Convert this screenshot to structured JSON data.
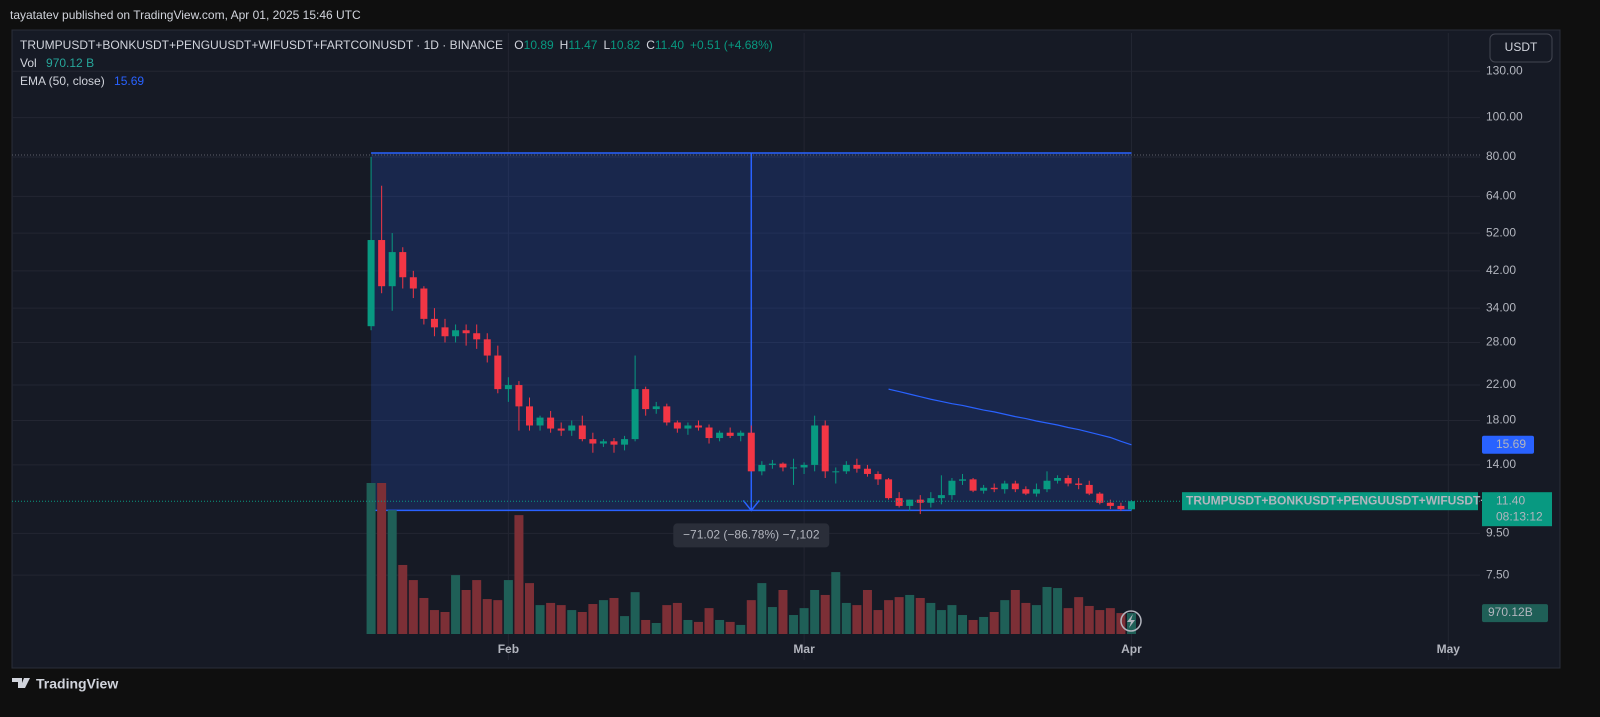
{
  "published": "tayatatev published on TradingView.com, Apr 01, 2025 15:46 UTC",
  "brand": "TradingView",
  "chart_data": {
    "type": "candlestick",
    "title": "TRUMPUSDT+BONKUSDT+PENGUUSDT+WIFUSDT+FARTCOINUSDT · 1D · BINANCE",
    "ohlc_legend": [
      {
        "key": "O",
        "value": "10.89"
      },
      {
        "key": "H",
        "value": "11.47"
      },
      {
        "key": "L",
        "value": "10.82"
      },
      {
        "key": "C",
        "value": "11.40"
      }
    ],
    "change": "+0.51 (+4.68%)",
    "currency": "USDT",
    "up_color": "#089981",
    "down_color": "#f23645",
    "open": [
      30.7,
      50,
      38.5,
      46.7,
      40.5,
      38,
      32,
      30.5,
      29,
      30,
      29.5,
      28.5,
      26,
      21.5,
      22,
      19.5,
      17.5,
      18.3,
      17.2,
      17,
      17.5,
      16.2,
      15.8,
      16,
      15.7,
      16.2,
      21.5,
      19.2,
      19.5,
      17.8,
      17.2,
      17.5,
      17.3,
      16.3,
      16.8,
      16.5,
      16.8,
      13.5,
      14,
      14.1,
      13.8,
      13.8,
      14,
      17.5,
      13.5,
      13.5,
      14,
      13.7,
      13.3,
      12.9,
      11.6,
      11.1,
      11.5,
      11.3,
      11.6,
      11.8,
      12.8,
      12.9,
      12.1,
      12.3,
      12.2,
      12.6,
      12.2,
      11.9,
      12.2,
      12.8,
      13,
      12.6,
      12.5,
      11.9,
      11.3,
      11.1,
      10.89
    ],
    "high": [
      80,
      68,
      52,
      48,
      42,
      38.5,
      34,
      32,
      31,
      31,
      31,
      29.5,
      27.5,
      23,
      22.5,
      20.5,
      18.5,
      19,
      17.8,
      18,
      18.5,
      16.8,
      16.2,
      16.3,
      16.5,
      26,
      21.8,
      20,
      19.8,
      18,
      17.8,
      18,
      17.6,
      17,
      17.3,
      17,
      17.5,
      14.3,
      14.4,
      14.2,
      14.5,
      14.2,
      18.5,
      18,
      13.8,
      14.3,
      14.5,
      14,
      13.5,
      13,
      12,
      11.5,
      11.8,
      12,
      13.2,
      13,
      13.3,
      13,
      12.5,
      12.6,
      12.8,
      12.8,
      12.4,
      12.6,
      13.5,
      13.2,
      13.2,
      13,
      12.8,
      12,
      11.5,
      11.3,
      11.47
    ],
    "low": [
      30,
      37,
      33.5,
      38,
      36,
      31,
      29,
      28,
      28,
      27.5,
      27,
      25,
      21,
      20,
      17,
      17,
      17,
      16.8,
      16.5,
      16.5,
      16,
      15,
      15.5,
      15,
      15.2,
      16,
      18.5,
      18.7,
      17.5,
      16.8,
      16.6,
      17,
      15.8,
      16,
      16.3,
      16,
      13.5,
      13.2,
      13.7,
      13.5,
      12.5,
      13.3,
      13.5,
      13,
      12.6,
      13.3,
      13.4,
      13.1,
      12.5,
      11.5,
      11,
      10.8,
      10.6,
      11,
      11.2,
      11.5,
      12.5,
      12,
      11.9,
      12,
      11.9,
      12,
      11.8,
      11.7,
      12,
      12.6,
      12.4,
      12.2,
      11.8,
      11.2,
      10.9,
      10.8,
      10.82
    ],
    "close": [
      50,
      38.5,
      46.7,
      40.5,
      38,
      32,
      30.5,
      29,
      30,
      29.5,
      28.5,
      26,
      21.5,
      22,
      19.5,
      17.5,
      18.3,
      17.2,
      17,
      17.5,
      16.2,
      15.8,
      16,
      15.7,
      16.2,
      21.5,
      19.2,
      19.5,
      17.8,
      17.2,
      17.5,
      17.3,
      16.3,
      16.8,
      16.5,
      16.8,
      13.5,
      14,
      14.1,
      13.8,
      13.8,
      14,
      17.5,
      13.5,
      13.5,
      14,
      13.7,
      13.3,
      12.9,
      11.6,
      11.1,
      11.5,
      11.3,
      11.6,
      11.8,
      12.8,
      12.9,
      12.1,
      12.3,
      12.2,
      12.6,
      12.2,
      11.9,
      12.2,
      12.8,
      13,
      12.6,
      12.5,
      11.9,
      11.3,
      11.1,
      10.9,
      11.4
    ],
    "volume": {
      "name": "Vol",
      "axis": "y2",
      "up_color": "#1f5f57",
      "down_color": "#7c2f36",
      "values": [
        7000,
        7000,
        5740,
        3200,
        2500,
        1670,
        1110,
        1020,
        2730,
        2040,
        2500,
        1620,
        1570,
        2500,
        5510,
        2360,
        1340,
        1440,
        1340,
        1110,
        1020,
        1390,
        1570,
        1670,
        830,
        1940,
        650,
        510,
        1340,
        1440,
        650,
        560,
        1200,
        650,
        560,
        420,
        1570,
        2360,
        1250,
        2040,
        880,
        1200,
        2040,
        1810,
        2870,
        1440,
        1340,
        2040,
        1110,
        1570,
        1710,
        1810,
        1670,
        1440,
        1110,
        1340,
        880,
        650,
        790,
        1020,
        1570,
        2040,
        1440,
        1340,
        2180,
        2130,
        1200,
        1710,
        1300,
        1110,
        1200,
        970,
        970.12
      ],
      "value_label": "970.12 B",
      "axis_label": "970.12B"
    },
    "ema": {
      "name": "EMA (50, close)",
      "color": "#2962ff",
      "values": [
        null,
        null,
        null,
        null,
        null,
        null,
        null,
        null,
        null,
        null,
        null,
        null,
        null,
        null,
        null,
        null,
        null,
        null,
        null,
        null,
        null,
        null,
        null,
        null,
        null,
        null,
        null,
        null,
        null,
        null,
        null,
        null,
        null,
        null,
        null,
        null,
        null,
        null,
        null,
        null,
        null,
        null,
        null,
        null,
        null,
        null,
        null,
        null,
        null,
        21.5,
        21.2,
        20.9,
        20.6,
        20.3,
        20.05,
        19.8,
        19.6,
        19.35,
        19.1,
        18.9,
        18.65,
        18.4,
        18.2,
        17.95,
        17.75,
        17.55,
        17.3,
        17.1,
        16.85,
        16.6,
        16.35,
        16.0,
        15.69
      ]
    },
    "symbol_label": "TRUMPUSDT+BONKUSDT+PENGUUSDT+WIFUSDT+...",
    "price_label": "11.40",
    "countdown": "08:13:12",
    "measure": {
      "from": 81.84,
      "to": 10.82,
      "label": "−71.02 (−86.78%) −7,102",
      "color": "#2962ff"
    },
    "xlim": [
      -34,
      105
    ],
    "xticks": [
      {
        "value": 13,
        "label": "Feb"
      },
      {
        "value": 41,
        "label": "Mar"
      },
      {
        "value": 72,
        "label": "Apr"
      },
      {
        "value": 102,
        "label": "May"
      }
    ],
    "ylim": [
      4.64,
      161.4
    ],
    "log_y": true,
    "yticks": [
      {
        "value": 130,
        "label": "130.00"
      },
      {
        "value": 100,
        "label": "100.00"
      },
      {
        "value": 80,
        "label": "80.00"
      },
      {
        "value": 64,
        "label": "64.00"
      },
      {
        "value": 52,
        "label": "52.00"
      },
      {
        "value": 42,
        "label": "42.00"
      },
      {
        "value": 34,
        "label": "34.00"
      },
      {
        "value": 28,
        "label": "28.00"
      },
      {
        "value": 22,
        "label": "22.00"
      },
      {
        "value": 18,
        "label": "18.00"
      },
      {
        "value": 14,
        "label": "14.00"
      },
      {
        "value": 9.5,
        "label": "9.50"
      },
      {
        "value": 7.5,
        "label": "7.50"
      }
    ],
    "y2lim": [
      0,
      27860
    ],
    "grid": true
  }
}
